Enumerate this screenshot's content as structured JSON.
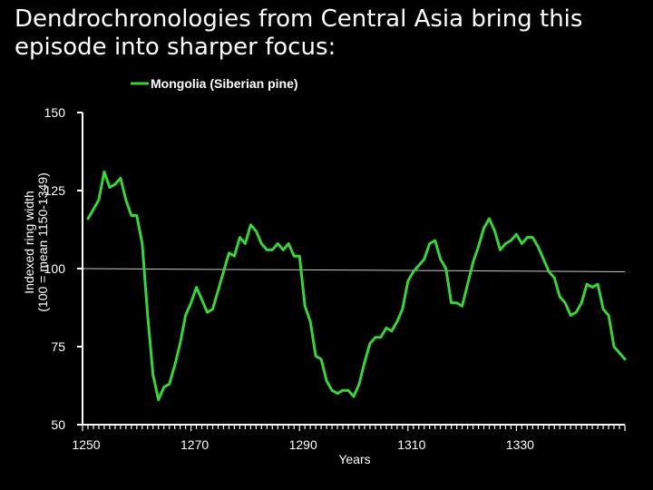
{
  "title": {
    "line1": "Dendrochronologies from Central Asia bring this",
    "line2": "episode into sharper focus:"
  },
  "colors": {
    "background": "#000000",
    "series": "#3cd23c",
    "axis": "#ffffff",
    "reference": "#c8c8c8"
  },
  "chart_data": {
    "type": "line",
    "title": "",
    "xlabel": "Years",
    "ylabel": "Indexed ring width (100 = mean 1150-1349)",
    "ylabel_lines": [
      "Indexed ring width",
      "(100 = mean 1150-1349)"
    ],
    "xlim": [
      1250,
      1350
    ],
    "ylim": [
      50,
      150
    ],
    "x_ticks": [
      1250,
      1270,
      1290,
      1310,
      1330
    ],
    "y_ticks": [
      50,
      75,
      100,
      125,
      150
    ],
    "grid": false,
    "legend_position": "top-center",
    "reference_line": {
      "from": [
        1250,
        100
      ],
      "to": [
        1350,
        99
      ]
    },
    "series": [
      {
        "name": "Mongolia (Siberian pine)",
        "x": [
          1251,
          1252,
          1253,
          1254,
          1255,
          1256,
          1257,
          1258,
          1259,
          1260,
          1261,
          1262,
          1263,
          1264,
          1265,
          1266,
          1267,
          1268,
          1269,
          1270,
          1271,
          1272,
          1273,
          1274,
          1275,
          1276,
          1277,
          1278,
          1279,
          1280,
          1281,
          1282,
          1283,
          1284,
          1285,
          1286,
          1287,
          1288,
          1289,
          1290,
          1291,
          1292,
          1293,
          1294,
          1295,
          1296,
          1297,
          1298,
          1299,
          1300,
          1301,
          1302,
          1303,
          1304,
          1305,
          1306,
          1307,
          1308,
          1309,
          1310,
          1311,
          1312,
          1313,
          1314,
          1315,
          1316,
          1317,
          1318,
          1319,
          1320,
          1321,
          1322,
          1323,
          1324,
          1325,
          1326,
          1327,
          1328,
          1329,
          1330,
          1331,
          1332,
          1333,
          1334,
          1335,
          1336,
          1337,
          1338,
          1339,
          1340,
          1341,
          1342,
          1343,
          1344,
          1345,
          1346,
          1347,
          1348,
          1349,
          1350
        ],
        "values": [
          116,
          119,
          122,
          131,
          126,
          127,
          129,
          122,
          117,
          117,
          108,
          85,
          66,
          58,
          62,
          63,
          69,
          76,
          85,
          89,
          94,
          90,
          86,
          87,
          93,
          99,
          105,
          104,
          110,
          108,
          114,
          112,
          108,
          106,
          106,
          108,
          106,
          108,
          104,
          104,
          88,
          83,
          72,
          71,
          64,
          61,
          60,
          61,
          61,
          59,
          63,
          70,
          76,
          78,
          78,
          81,
          80,
          83,
          87,
          96,
          99,
          101,
          103,
          108,
          109,
          103,
          100,
          89,
          89,
          88,
          95,
          102,
          107,
          113,
          116,
          112,
          106,
          108,
          109,
          111,
          108,
          110,
          110,
          107,
          103,
          99,
          97,
          91,
          89,
          85,
          86,
          89,
          95,
          94,
          95,
          87,
          85,
          75,
          73,
          71
        ]
      }
    ]
  }
}
